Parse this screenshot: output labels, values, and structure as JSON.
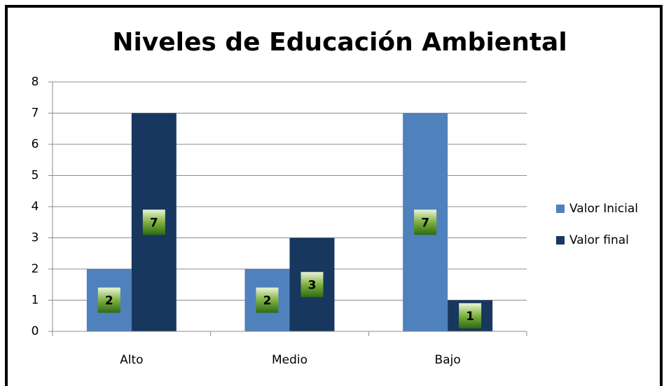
{
  "chart_data": {
    "type": "bar",
    "title": "Niveles de Educación Ambiental",
    "categories": [
      "Alto",
      "Medio",
      "Bajo"
    ],
    "series": [
      {
        "name": "Valor Inicial",
        "color": "#4f81bd",
        "values": [
          2,
          2,
          7
        ]
      },
      {
        "name": "Valor final",
        "color": "#17375e",
        "values": [
          7,
          3,
          1
        ]
      }
    ],
    "ylim": [
      0,
      8
    ],
    "yticks": [
      0,
      1,
      2,
      3,
      4,
      5,
      6,
      7,
      8
    ],
    "grid": true,
    "legend": "right"
  }
}
